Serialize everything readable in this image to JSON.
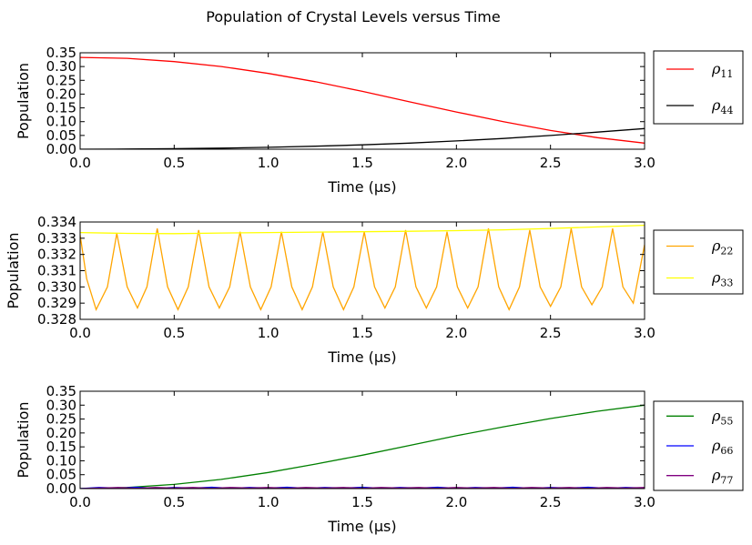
{
  "figure_title": "Population of Crystal Levels versus Time",
  "chart_data": [
    {
      "type": "line",
      "xlabel": "Time (μs)",
      "ylabel": "Population",
      "xlim": [
        0,
        3
      ],
      "ylim": [
        0,
        0.35
      ],
      "xticks": [
        0.0,
        0.5,
        1.0,
        1.5,
        2.0,
        2.5,
        3.0
      ],
      "xtick_labels": [
        "0.0",
        "0.5",
        "1.0",
        "1.5",
        "2.0",
        "2.5",
        "3.0"
      ],
      "yticks": [
        0,
        0.05,
        0.1,
        0.15,
        0.2,
        0.25,
        0.3,
        0.35
      ],
      "ytick_labels": [
        "0.00",
        "0.05",
        "0.10",
        "0.15",
        "0.20",
        "0.25",
        "0.30",
        "0.35"
      ],
      "legend_position": "outside-right",
      "series": [
        {
          "name": "ρ11",
          "sym": "ρ",
          "sub": "11",
          "color": "#ff0000",
          "x": [
            0,
            0.25,
            0.5,
            0.75,
            1.0,
            1.25,
            1.5,
            1.75,
            2.0,
            2.25,
            2.5,
            2.75,
            3.0
          ],
          "y": [
            0.333,
            0.33,
            0.318,
            0.3,
            0.275,
            0.245,
            0.21,
            0.172,
            0.135,
            0.1,
            0.068,
            0.042,
            0.022
          ]
        },
        {
          "name": "ρ44",
          "sym": "ρ",
          "sub": "44",
          "color": "#000000",
          "x": [
            0,
            0.25,
            0.5,
            0.75,
            1.0,
            1.25,
            1.5,
            1.75,
            2.0,
            2.25,
            2.5,
            2.75,
            3.0
          ],
          "y": [
            0,
            0.0005,
            0.002,
            0.004,
            0.007,
            0.011,
            0.016,
            0.022,
            0.03,
            0.039,
            0.05,
            0.062,
            0.075
          ]
        }
      ]
    },
    {
      "type": "line",
      "xlabel": "Time (μs)",
      "ylabel": "Population",
      "xlim": [
        0,
        3
      ],
      "ylim": [
        0.328,
        0.334
      ],
      "xticks": [
        0.0,
        0.5,
        1.0,
        1.5,
        2.0,
        2.5,
        3.0
      ],
      "xtick_labels": [
        "0.0",
        "0.5",
        "1.0",
        "1.5",
        "2.0",
        "2.5",
        "3.0"
      ],
      "yticks": [
        0.328,
        0.329,
        0.33,
        0.331,
        0.332,
        0.333,
        0.334
      ],
      "ytick_labels": [
        "0.328",
        "0.329",
        "0.330",
        "0.331",
        "0.332",
        "0.333",
        "0.334"
      ],
      "legend_position": "outside-right",
      "series": [
        {
          "name": "ρ22",
          "sym": "ρ",
          "sub": "22",
          "color": "#ffa500",
          "x": [
            0,
            0.035,
            0.085,
            0.145,
            0.195,
            0.25,
            0.305,
            0.355,
            0.41,
            0.465,
            0.52,
            0.575,
            0.63,
            0.685,
            0.74,
            0.795,
            0.85,
            0.905,
            0.96,
            1.015,
            1.07,
            1.125,
            1.18,
            1.235,
            1.29,
            1.345,
            1.4,
            1.455,
            1.51,
            1.565,
            1.62,
            1.675,
            1.73,
            1.785,
            1.84,
            1.895,
            1.95,
            2.005,
            2.06,
            2.115,
            2.17,
            2.225,
            2.28,
            2.335,
            2.39,
            2.445,
            2.5,
            2.555,
            2.61,
            2.665,
            2.72,
            2.775,
            2.83,
            2.885,
            2.94,
            3.0
          ],
          "y": [
            0.3332,
            0.3305,
            0.3286,
            0.33,
            0.3333,
            0.33,
            0.3287,
            0.33,
            0.3336,
            0.33,
            0.3286,
            0.33,
            0.3335,
            0.33,
            0.3287,
            0.33,
            0.3334,
            0.33,
            0.3286,
            0.33,
            0.3334,
            0.33,
            0.3286,
            0.33,
            0.3334,
            0.33,
            0.3286,
            0.33,
            0.3334,
            0.33,
            0.3287,
            0.33,
            0.3335,
            0.33,
            0.3287,
            0.33,
            0.3334,
            0.33,
            0.3287,
            0.33,
            0.3336,
            0.33,
            0.3286,
            0.33,
            0.3335,
            0.33,
            0.3288,
            0.33,
            0.3336,
            0.33,
            0.3289,
            0.33,
            0.3336,
            0.33,
            0.329,
            0.3326
          ]
        },
        {
          "name": "ρ33",
          "sym": "ρ",
          "sub": "33",
          "color": "#ffff00",
          "x": [
            0,
            0.25,
            0.5,
            0.75,
            1.0,
            1.25,
            1.5,
            1.75,
            2.0,
            2.25,
            2.5,
            2.75,
            3.0
          ],
          "y": [
            0.33335,
            0.3333,
            0.33328,
            0.33332,
            0.33335,
            0.33338,
            0.3334,
            0.33343,
            0.33347,
            0.33352,
            0.3336,
            0.3337,
            0.3338
          ]
        }
      ]
    },
    {
      "type": "line",
      "xlabel": "Time (μs)",
      "ylabel": "Population",
      "xlim": [
        0,
        3
      ],
      "ylim": [
        0,
        0.35
      ],
      "xticks": [
        0.0,
        0.5,
        1.0,
        1.5,
        2.0,
        2.5,
        3.0
      ],
      "xtick_labels": [
        "0.0",
        "0.5",
        "1.0",
        "1.5",
        "2.0",
        "2.5",
        "3.0"
      ],
      "yticks": [
        0,
        0.05,
        0.1,
        0.15,
        0.2,
        0.25,
        0.3,
        0.35
      ],
      "ytick_labels": [
        "0.00",
        "0.05",
        "0.10",
        "0.15",
        "0.20",
        "0.25",
        "0.30",
        "0.35"
      ],
      "legend_position": "outside-right",
      "series": [
        {
          "name": "ρ55",
          "sym": "ρ",
          "sub": "55",
          "color": "#008000",
          "x": [
            0,
            0.25,
            0.5,
            0.75,
            1.0,
            1.25,
            1.5,
            1.75,
            2.0,
            2.25,
            2.5,
            2.75,
            3.0
          ],
          "y": [
            0,
            0.004,
            0.015,
            0.033,
            0.058,
            0.088,
            0.12,
            0.155,
            0.19,
            0.222,
            0.252,
            0.278,
            0.3
          ]
        },
        {
          "name": "ρ66",
          "sym": "ρ",
          "sub": "66",
          "color": "#0000ff",
          "x": [
            0,
            0.1,
            0.2,
            0.3,
            0.4,
            0.5,
            0.6,
            0.7,
            0.8,
            0.9,
            1.0,
            1.1,
            1.2,
            1.3,
            1.4,
            1.5,
            1.6,
            1.7,
            1.8,
            1.9,
            2.0,
            2.1,
            2.2,
            2.3,
            2.4,
            2.5,
            2.6,
            2.7,
            2.8,
            2.9,
            3.0
          ],
          "y": [
            0,
            0.004,
            0.002,
            0.005,
            0.001,
            0.004,
            0.002,
            0.005,
            0.001,
            0.004,
            0.002,
            0.005,
            0.001,
            0.004,
            0.002,
            0.005,
            0.001,
            0.004,
            0.002,
            0.005,
            0.001,
            0.004,
            0.002,
            0.005,
            0.001,
            0.004,
            0.002,
            0.005,
            0.001,
            0.004,
            0.002
          ]
        },
        {
          "name": "ρ77",
          "sym": "ρ",
          "sub": "77",
          "color": "#800080",
          "x": [
            0,
            0.1,
            0.2,
            0.3,
            0.4,
            0.5,
            0.6,
            0.7,
            0.8,
            0.9,
            1.0,
            1.1,
            1.2,
            1.3,
            1.4,
            1.5,
            1.6,
            1.7,
            1.8,
            1.9,
            2.0,
            2.1,
            2.2,
            2.3,
            2.4,
            2.5,
            2.6,
            2.7,
            2.8,
            2.9,
            3.0
          ],
          "y": [
            0,
            0.002,
            0.004,
            0.001,
            0.004,
            0.002,
            0.004,
            0.001,
            0.004,
            0.002,
            0.004,
            0.001,
            0.004,
            0.002,
            0.004,
            0.001,
            0.004,
            0.002,
            0.004,
            0.001,
            0.004,
            0.002,
            0.004,
            0.001,
            0.004,
            0.002,
            0.004,
            0.001,
            0.004,
            0.002,
            0.004
          ]
        }
      ]
    }
  ]
}
